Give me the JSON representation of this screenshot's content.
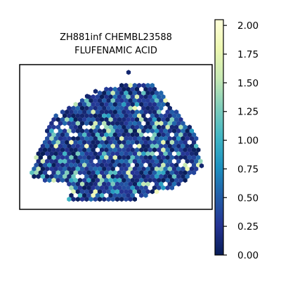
{
  "chart_data": {
    "type": "heatmap",
    "subtype": "hexbin spatial expression map",
    "title_lines": [
      "ZH881inf CHEMBL23588",
      "FLUFENAMIC ACID"
    ],
    "xlabel": "",
    "ylabel": "",
    "axis_ticks_visible": false,
    "grid": false,
    "colormap": "YlGnBu_r",
    "colorbar": {
      "position": "right",
      "range": [
        0.0,
        2.05
      ],
      "ticks": [
        0.0,
        0.25,
        0.5,
        0.75,
        1.0,
        1.25,
        1.5,
        1.75,
        2.0
      ],
      "tick_labels": [
        "0.00",
        "0.25",
        "0.50",
        "0.75",
        "1.00",
        "1.25",
        "1.50",
        "1.75",
        "2.00"
      ]
    },
    "value_distribution": {
      "most_common_range": [
        0.0,
        0.6
      ],
      "scattered_highs_range": [
        0.8,
        1.6
      ],
      "max_observed": 1.9
    },
    "colors": {
      "low": "#081d58",
      "mid": "#1d91c0",
      "high": "#ffffd9"
    }
  }
}
